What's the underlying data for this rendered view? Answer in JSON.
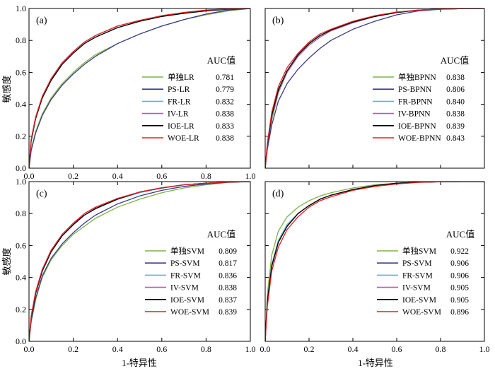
{
  "figure": {
    "xlabel": "1-特异性",
    "ylabel": "敏感度"
  },
  "chart_data": [
    {
      "type": "line",
      "panel": "(a)",
      "legend_title": "AUC值",
      "xlim": [
        0,
        1
      ],
      "ylim": [
        0,
        1
      ],
      "x_ticks": [
        "0.0",
        "0.2",
        "0.4",
        "0.6",
        "0.8",
        "1.0"
      ],
      "y_ticks": [
        "0.0",
        "0.2",
        "0.4",
        "0.6",
        "0.8",
        "1.0"
      ],
      "series": [
        {
          "name": "单独LR",
          "auc": "0.781",
          "color": "#7cb342",
          "x": [
            0,
            0.01,
            0.03,
            0.06,
            0.1,
            0.15,
            0.2,
            0.25,
            0.3,
            0.4,
            0.5,
            0.6,
            0.7,
            0.8,
            0.9,
            1.0
          ],
          "y": [
            0,
            0.12,
            0.23,
            0.34,
            0.44,
            0.53,
            0.6,
            0.66,
            0.71,
            0.78,
            0.84,
            0.89,
            0.93,
            0.96,
            0.985,
            1.0
          ]
        },
        {
          "name": "PS-LR",
          "auc": "0.779",
          "color": "#3a3a8c",
          "x": [
            0,
            0.01,
            0.03,
            0.06,
            0.1,
            0.15,
            0.2,
            0.25,
            0.3,
            0.4,
            0.5,
            0.6,
            0.7,
            0.8,
            0.9,
            1.0
          ],
          "y": [
            0,
            0.11,
            0.22,
            0.33,
            0.43,
            0.52,
            0.59,
            0.65,
            0.7,
            0.78,
            0.84,
            0.89,
            0.93,
            0.965,
            0.99,
            1.0
          ]
        },
        {
          "name": "FR-LR",
          "auc": "0.832",
          "color": "#5cb8c8",
          "x": [
            0,
            0.01,
            0.03,
            0.06,
            0.1,
            0.15,
            0.2,
            0.25,
            0.3,
            0.4,
            0.5,
            0.6,
            0.7,
            0.8,
            0.9,
            1.0
          ],
          "y": [
            0,
            0.17,
            0.31,
            0.44,
            0.55,
            0.65,
            0.72,
            0.78,
            0.82,
            0.88,
            0.92,
            0.95,
            0.97,
            0.985,
            0.995,
            1.0
          ]
        },
        {
          "name": "IV-LR",
          "auc": "0.838",
          "color": "#b05cb0",
          "x": [
            0,
            0.01,
            0.03,
            0.06,
            0.1,
            0.15,
            0.2,
            0.25,
            0.3,
            0.4,
            0.5,
            0.6,
            0.7,
            0.8,
            0.9,
            1.0
          ],
          "y": [
            0,
            0.18,
            0.32,
            0.45,
            0.56,
            0.66,
            0.73,
            0.79,
            0.83,
            0.89,
            0.925,
            0.955,
            0.975,
            0.99,
            0.997,
            1.0
          ]
        },
        {
          "name": "IOE-LR",
          "auc": "0.833",
          "color": "#000000",
          "x": [
            0,
            0.01,
            0.03,
            0.06,
            0.1,
            0.15,
            0.2,
            0.25,
            0.3,
            0.4,
            0.5,
            0.6,
            0.7,
            0.8,
            0.9,
            1.0
          ],
          "y": [
            0,
            0.17,
            0.31,
            0.44,
            0.55,
            0.65,
            0.72,
            0.78,
            0.82,
            0.88,
            0.92,
            0.95,
            0.97,
            0.985,
            0.995,
            1.0
          ]
        },
        {
          "name": "WOE-LR",
          "auc": "0.838",
          "color": "#e02020",
          "x": [
            0,
            0.01,
            0.03,
            0.06,
            0.1,
            0.15,
            0.2,
            0.25,
            0.3,
            0.4,
            0.5,
            0.6,
            0.7,
            0.8,
            0.9,
            1.0
          ],
          "y": [
            0,
            0.18,
            0.32,
            0.45,
            0.56,
            0.66,
            0.73,
            0.79,
            0.83,
            0.89,
            0.925,
            0.955,
            0.975,
            0.99,
            0.997,
            1.0
          ]
        }
      ]
    },
    {
      "type": "line",
      "panel": "(b)",
      "legend_title": "AUC值",
      "xlim": [
        0,
        1
      ],
      "ylim": [
        0,
        1
      ],
      "x_ticks": [
        "",
        "",
        "",
        "",
        "",
        ""
      ],
      "y_ticks": [
        "",
        "",
        "",
        "",
        "",
        ""
      ],
      "series": [
        {
          "name": "单独BPNN",
          "auc": "0.838",
          "color": "#7cb342",
          "x": [
            0,
            0.01,
            0.03,
            0.06,
            0.1,
            0.15,
            0.2,
            0.25,
            0.3,
            0.4,
            0.5,
            0.6,
            0.7,
            0.8,
            0.9,
            1.0
          ],
          "y": [
            0,
            0.13,
            0.3,
            0.47,
            0.6,
            0.7,
            0.77,
            0.82,
            0.86,
            0.91,
            0.95,
            0.975,
            0.99,
            0.996,
            0.999,
            1.0
          ]
        },
        {
          "name": "PS-BPNN",
          "auc": "0.806",
          "color": "#3a3a8c",
          "x": [
            0,
            0.01,
            0.03,
            0.06,
            0.1,
            0.15,
            0.2,
            0.25,
            0.3,
            0.4,
            0.5,
            0.6,
            0.7,
            0.8,
            0.9,
            1.0
          ],
          "y": [
            0,
            0.12,
            0.27,
            0.42,
            0.53,
            0.62,
            0.69,
            0.75,
            0.8,
            0.87,
            0.92,
            0.96,
            0.985,
            0.995,
            0.999,
            1.0
          ]
        },
        {
          "name": "FR-BPNN",
          "auc": "0.840",
          "color": "#5cb8c8",
          "x": [
            0,
            0.01,
            0.03,
            0.06,
            0.1,
            0.15,
            0.2,
            0.25,
            0.3,
            0.4,
            0.5,
            0.6,
            0.7,
            0.8,
            0.9,
            1.0
          ],
          "y": [
            0,
            0.15,
            0.33,
            0.49,
            0.61,
            0.71,
            0.78,
            0.83,
            0.865,
            0.915,
            0.95,
            0.975,
            0.99,
            0.996,
            0.999,
            1.0
          ]
        },
        {
          "name": "IV-BPNN",
          "auc": "0.838",
          "color": "#b05cb0",
          "x": [
            0,
            0.01,
            0.03,
            0.06,
            0.1,
            0.15,
            0.2,
            0.25,
            0.3,
            0.4,
            0.5,
            0.6,
            0.7,
            0.8,
            0.9,
            1.0
          ],
          "y": [
            0,
            0.14,
            0.32,
            0.48,
            0.6,
            0.7,
            0.77,
            0.82,
            0.86,
            0.91,
            0.95,
            0.975,
            0.99,
            0.996,
            0.999,
            1.0
          ]
        },
        {
          "name": "IOE-BPNN",
          "auc": "0.839",
          "color": "#000000",
          "x": [
            0,
            0.01,
            0.03,
            0.06,
            0.1,
            0.15,
            0.2,
            0.25,
            0.3,
            0.4,
            0.5,
            0.6,
            0.7,
            0.8,
            0.9,
            1.0
          ],
          "y": [
            0,
            0.15,
            0.33,
            0.49,
            0.61,
            0.71,
            0.78,
            0.83,
            0.865,
            0.915,
            0.95,
            0.975,
            0.99,
            0.996,
            0.999,
            1.0
          ]
        },
        {
          "name": "WOE-BPNN",
          "auc": "0.843",
          "color": "#e02020",
          "x": [
            0,
            0.01,
            0.03,
            0.06,
            0.1,
            0.15,
            0.2,
            0.25,
            0.3,
            0.4,
            0.5,
            0.6,
            0.7,
            0.8,
            0.9,
            1.0
          ],
          "y": [
            0,
            0.16,
            0.35,
            0.51,
            0.63,
            0.72,
            0.79,
            0.84,
            0.87,
            0.92,
            0.955,
            0.978,
            0.99,
            0.996,
            0.999,
            1.0
          ]
        }
      ]
    },
    {
      "type": "line",
      "panel": "(c)",
      "legend_title": "AUC值",
      "xlim": [
        0,
        1
      ],
      "ylim": [
        0,
        1
      ],
      "x_ticks": [
        "0.0",
        "0.2",
        "0.4",
        "0.6",
        "0.8",
        "1.0"
      ],
      "y_ticks": [
        "0.0",
        "0.2",
        "0.4",
        "0.6",
        "0.8",
        "1.0"
      ],
      "series": [
        {
          "name": "单独SVM",
          "auc": "0.809",
          "color": "#7cb342",
          "x": [
            0,
            0.01,
            0.03,
            0.06,
            0.1,
            0.15,
            0.2,
            0.25,
            0.3,
            0.4,
            0.5,
            0.6,
            0.7,
            0.8,
            0.9,
            1.0
          ],
          "y": [
            0,
            0.12,
            0.26,
            0.4,
            0.51,
            0.6,
            0.67,
            0.72,
            0.77,
            0.84,
            0.89,
            0.93,
            0.96,
            0.98,
            0.995,
            1.0
          ]
        },
        {
          "name": "PS-SVM",
          "auc": "0.817",
          "color": "#3a3a8c",
          "x": [
            0,
            0.01,
            0.03,
            0.06,
            0.1,
            0.15,
            0.2,
            0.25,
            0.3,
            0.4,
            0.5,
            0.6,
            0.7,
            0.8,
            0.9,
            1.0
          ],
          "y": [
            0,
            0.13,
            0.27,
            0.41,
            0.52,
            0.61,
            0.68,
            0.74,
            0.79,
            0.86,
            0.91,
            0.945,
            0.97,
            0.985,
            0.996,
            1.0
          ]
        },
        {
          "name": "FR-SVM",
          "auc": "0.836",
          "color": "#5cb8c8",
          "x": [
            0,
            0.01,
            0.03,
            0.06,
            0.1,
            0.15,
            0.2,
            0.25,
            0.3,
            0.4,
            0.5,
            0.6,
            0.7,
            0.8,
            0.9,
            1.0
          ],
          "y": [
            0,
            0.15,
            0.3,
            0.44,
            0.56,
            0.66,
            0.73,
            0.79,
            0.83,
            0.89,
            0.93,
            0.96,
            0.98,
            0.99,
            0.997,
            1.0
          ]
        },
        {
          "name": "IV-SVM",
          "auc": "0.838",
          "color": "#b05cb0",
          "x": [
            0,
            0.01,
            0.03,
            0.06,
            0.1,
            0.15,
            0.2,
            0.25,
            0.3,
            0.4,
            0.5,
            0.6,
            0.7,
            0.8,
            0.9,
            1.0
          ],
          "y": [
            0,
            0.15,
            0.31,
            0.45,
            0.57,
            0.67,
            0.74,
            0.79,
            0.835,
            0.89,
            0.935,
            0.96,
            0.98,
            0.99,
            0.997,
            1.0
          ]
        },
        {
          "name": "IOE-SVM",
          "auc": "0.837",
          "color": "#000000",
          "x": [
            0,
            0.01,
            0.03,
            0.06,
            0.1,
            0.15,
            0.2,
            0.25,
            0.3,
            0.4,
            0.5,
            0.6,
            0.7,
            0.8,
            0.9,
            1.0
          ],
          "y": [
            0,
            0.15,
            0.3,
            0.44,
            0.56,
            0.66,
            0.73,
            0.79,
            0.83,
            0.89,
            0.935,
            0.96,
            0.98,
            0.99,
            0.997,
            1.0
          ]
        },
        {
          "name": "WOE-SVM",
          "auc": "0.839",
          "color": "#e02020",
          "x": [
            0,
            0.01,
            0.03,
            0.06,
            0.1,
            0.15,
            0.2,
            0.25,
            0.3,
            0.4,
            0.5,
            0.6,
            0.7,
            0.8,
            0.9,
            1.0
          ],
          "y": [
            0,
            0.16,
            0.31,
            0.45,
            0.57,
            0.67,
            0.74,
            0.8,
            0.84,
            0.895,
            0.935,
            0.962,
            0.98,
            0.99,
            0.997,
            1.0
          ]
        }
      ]
    },
    {
      "type": "line",
      "panel": "(d)",
      "legend_title": "AUC值",
      "xlim": [
        0,
        1
      ],
      "ylim": [
        0,
        1
      ],
      "x_ticks": [
        "0.0",
        "0.2",
        "0.4",
        "0.6",
        "0.8",
        "1.0"
      ],
      "y_ticks": [
        "",
        "",
        "",
        "",
        "",
        ""
      ],
      "series": [
        {
          "name": "单独SVM",
          "auc": "0.922",
          "color": "#7cb342",
          "x": [
            0,
            0.01,
            0.03,
            0.06,
            0.1,
            0.15,
            0.2,
            0.25,
            0.3,
            0.4,
            0.5,
            0.6,
            0.7,
            0.8,
            0.9,
            1.0
          ],
          "y": [
            0,
            0.3,
            0.54,
            0.69,
            0.78,
            0.84,
            0.88,
            0.91,
            0.93,
            0.96,
            0.98,
            0.99,
            0.996,
            0.999,
            1.0,
            1.0
          ]
        },
        {
          "name": "PS-SVM",
          "auc": "0.906",
          "color": "#3a3a8c",
          "x": [
            0,
            0.01,
            0.03,
            0.06,
            0.1,
            0.15,
            0.2,
            0.25,
            0.3,
            0.4,
            0.5,
            0.6,
            0.7,
            0.8,
            0.9,
            1.0
          ],
          "y": [
            0,
            0.26,
            0.48,
            0.63,
            0.73,
            0.8,
            0.85,
            0.89,
            0.915,
            0.95,
            0.975,
            0.99,
            0.996,
            0.999,
            1.0,
            1.0
          ]
        },
        {
          "name": "FR-SVM",
          "auc": "0.906",
          "color": "#5cb8c8",
          "x": [
            0,
            0.01,
            0.03,
            0.06,
            0.1,
            0.15,
            0.2,
            0.25,
            0.3,
            0.4,
            0.5,
            0.6,
            0.7,
            0.8,
            0.9,
            1.0
          ],
          "y": [
            0,
            0.26,
            0.48,
            0.63,
            0.73,
            0.8,
            0.85,
            0.89,
            0.915,
            0.95,
            0.975,
            0.99,
            0.996,
            0.999,
            1.0,
            1.0
          ]
        },
        {
          "name": "IV-SVM",
          "auc": "0.905",
          "color": "#b05cb0",
          "x": [
            0,
            0.01,
            0.03,
            0.06,
            0.1,
            0.15,
            0.2,
            0.25,
            0.3,
            0.4,
            0.5,
            0.6,
            0.7,
            0.8,
            0.9,
            1.0
          ],
          "y": [
            0,
            0.25,
            0.47,
            0.62,
            0.72,
            0.8,
            0.85,
            0.89,
            0.915,
            0.95,
            0.975,
            0.99,
            0.996,
            0.999,
            1.0,
            1.0
          ]
        },
        {
          "name": "IOE-SVM",
          "auc": "0.905",
          "color": "#000000",
          "x": [
            0,
            0.01,
            0.03,
            0.06,
            0.1,
            0.15,
            0.2,
            0.25,
            0.3,
            0.4,
            0.5,
            0.6,
            0.7,
            0.8,
            0.9,
            1.0
          ],
          "y": [
            0,
            0.25,
            0.47,
            0.62,
            0.72,
            0.8,
            0.85,
            0.89,
            0.915,
            0.95,
            0.975,
            0.99,
            0.996,
            0.999,
            1.0,
            1.0
          ]
        },
        {
          "name": "WOE-SVM",
          "auc": "0.896",
          "color": "#e02020",
          "x": [
            0,
            0.01,
            0.03,
            0.06,
            0.1,
            0.15,
            0.2,
            0.25,
            0.3,
            0.4,
            0.5,
            0.6,
            0.7,
            0.8,
            0.9,
            1.0
          ],
          "y": [
            0,
            0.22,
            0.44,
            0.59,
            0.7,
            0.78,
            0.84,
            0.88,
            0.905,
            0.945,
            0.97,
            0.985,
            0.995,
            0.999,
            1.0,
            1.0
          ]
        }
      ]
    }
  ]
}
